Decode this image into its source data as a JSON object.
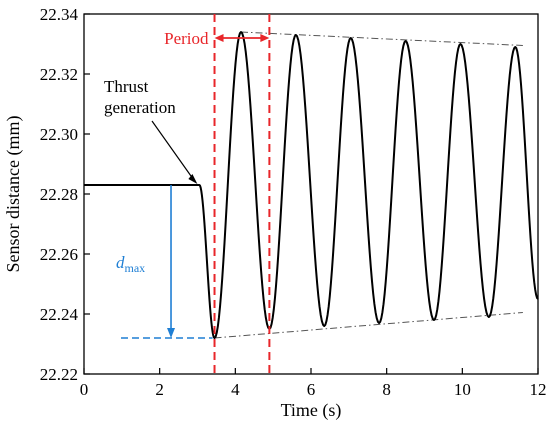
{
  "chart_data": {
    "type": "line",
    "xlabel": "Time (s)",
    "ylabel": "Sensor distance (mm)",
    "xlim": [
      0,
      12
    ],
    "ylim": [
      22.22,
      22.34
    ],
    "xticks": [
      0,
      2,
      4,
      6,
      8,
      10,
      12
    ],
    "yticks": [
      22.22,
      22.24,
      22.26,
      22.28,
      22.3,
      22.32,
      22.34
    ],
    "grid": false,
    "series": [
      {
        "baseline": {
          "x": [
            0,
            3.05
          ],
          "y": [
            22.283,
            22.283
          ]
        },
        "oscillation": {
          "start_time": 3.05,
          "period": 1.45,
          "maxima": [
            {
              "x": 4.15,
              "y": 22.334
            },
            {
              "x": 5.6,
              "y": 22.333
            },
            {
              "x": 7.05,
              "y": 22.332
            },
            {
              "x": 8.5,
              "y": 22.331
            },
            {
              "x": 9.95,
              "y": 22.33
            },
            {
              "x": 11.4,
              "y": 22.329
            }
          ],
          "minima": [
            {
              "x": 3.45,
              "y": 22.232
            },
            {
              "x": 4.9,
              "y": 22.235
            },
            {
              "x": 6.35,
              "y": 22.236
            },
            {
              "x": 7.8,
              "y": 22.237
            },
            {
              "x": 9.25,
              "y": 22.238
            },
            {
              "x": 10.7,
              "y": 22.239
            }
          ],
          "end": {
            "x": 12,
            "y": 22.245
          }
        }
      }
    ],
    "annotations": {
      "period": {
        "label": "Period",
        "x_start": 3.45,
        "x_end": 4.9
      },
      "thrust": {
        "label_line1": "Thrust",
        "label_line2": "generation",
        "point": {
          "x": 3.05,
          "y": 22.283
        }
      },
      "dmax": {
        "label_main": "d",
        "label_sub": "max",
        "x": 2.3,
        "y_top": 22.283,
        "y_bottom": 22.232
      },
      "upper_envelope": {
        "x": [
          4.15,
          11.6
        ],
        "y": [
          22.334,
          22.3295
        ]
      },
      "lower_envelope": {
        "x": [
          3.45,
          11.6
        ],
        "y": [
          22.232,
          22.2405
        ]
      }
    },
    "colors": {
      "curve": "#000000",
      "period": "#e8262a",
      "dmax": "#1f7fd4",
      "envelope": "#555555"
    }
  }
}
